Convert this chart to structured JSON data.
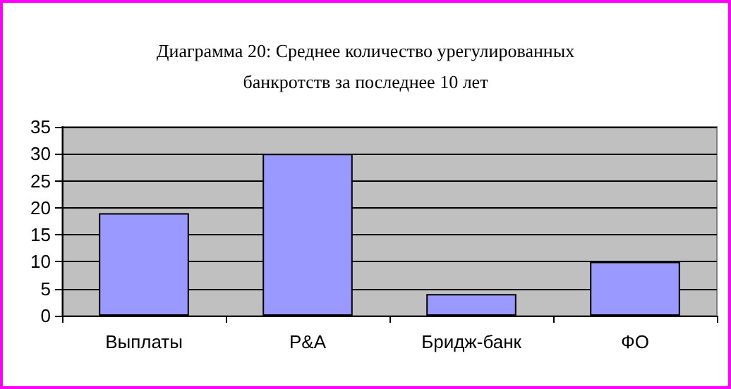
{
  "chart_data": {
    "type": "bar",
    "title": "Диаграмма 20: Среднее количество урегулированных\nбанкротств за последнее 10 лет",
    "categories": [
      "Выплаты",
      "P&A",
      "Бридж-банк",
      "ФО"
    ],
    "values": [
      19,
      30,
      4,
      10
    ],
    "color": "#9999ff",
    "ylim": [
      0,
      35
    ],
    "yticks": [
      0,
      5,
      10,
      15,
      20,
      25,
      30,
      35
    ],
    "grid": "y"
  }
}
